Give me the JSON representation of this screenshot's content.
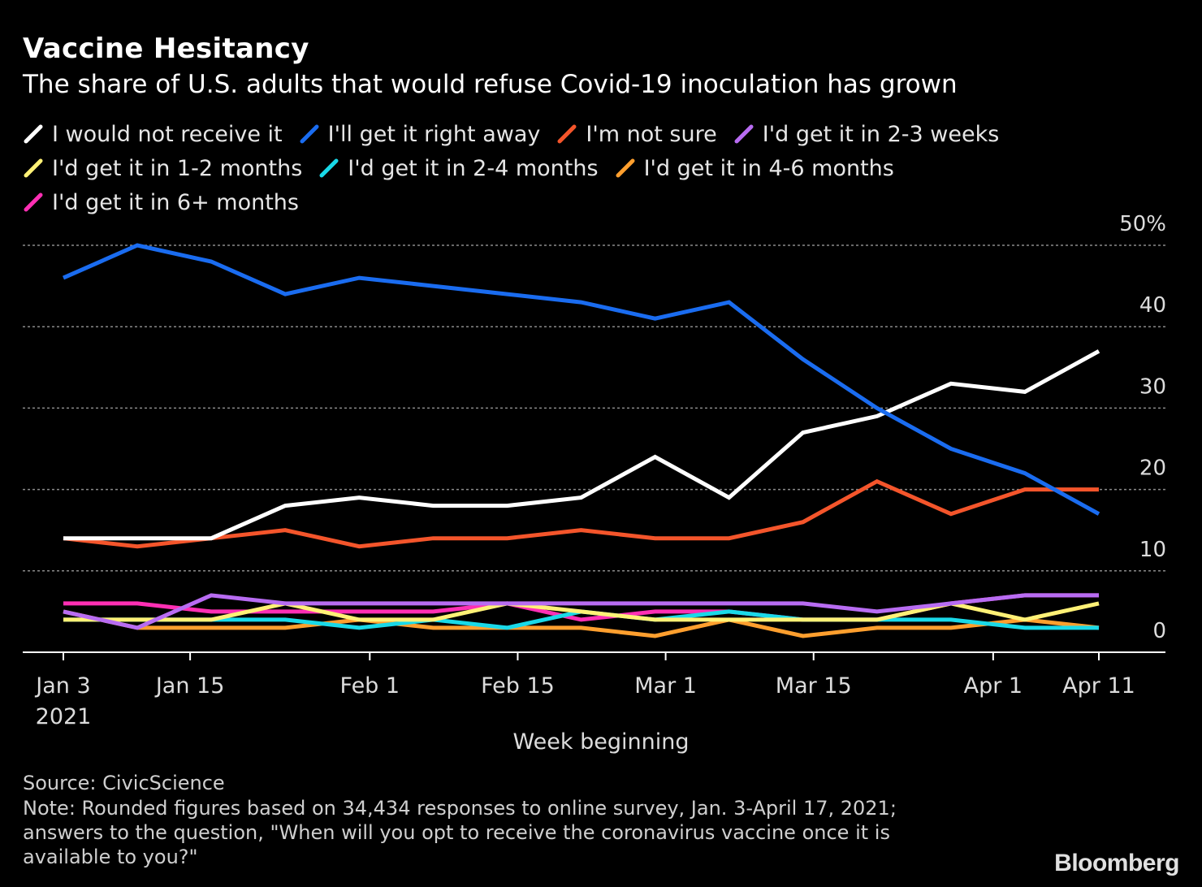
{
  "header": {
    "title": "Vaccine Hesitancy",
    "subtitle": "The share of U.S. adults that would refuse Covid-19 inoculation has grown"
  },
  "footer": {
    "source": "Source: CivicScience",
    "note": "Note: Rounded figures based on 34,434 responses to online survey, Jan. 3-April 17, 2021; answers to the question, \"When will you opt to receive the coronavirus vaccine once it is available to you?\"",
    "brand": "Bloomberg"
  },
  "chart_data": {
    "type": "line",
    "title": "Vaccine Hesitancy",
    "xlabel": "Week beginning",
    "ylabel": "",
    "ylim": [
      0,
      50
    ],
    "y_ticks": [
      0,
      10,
      20,
      30,
      40,
      50
    ],
    "y_tick_labels": [
      "0",
      "10",
      "20",
      "30",
      "40",
      "50%"
    ],
    "x_ticks": [
      {
        "week": 0,
        "label": "Jan 3",
        "sublabel": "2021"
      },
      {
        "week": 1.714,
        "label": "Jan 15",
        "sublabel": ""
      },
      {
        "week": 4.143,
        "label": "Feb 1",
        "sublabel": ""
      },
      {
        "week": 6.143,
        "label": "Feb 15",
        "sublabel": ""
      },
      {
        "week": 8.143,
        "label": "Mar 1",
        "sublabel": ""
      },
      {
        "week": 10.143,
        "label": "Mar 15",
        "sublabel": ""
      },
      {
        "week": 12.571,
        "label": "Apr 1",
        "sublabel": ""
      },
      {
        "week": 14,
        "label": "Apr 11",
        "sublabel": ""
      }
    ],
    "grid": true,
    "legend_position": "top",
    "x": [
      0,
      1,
      2,
      3,
      4,
      5,
      6,
      7,
      8,
      9,
      10,
      11,
      12,
      13,
      14
    ],
    "series": [
      {
        "name": "I would not receive it",
        "color": "#ffffff",
        "values": [
          14,
          14,
          14,
          18,
          19,
          18,
          18,
          19,
          24,
          19,
          27,
          29,
          33,
          32,
          37
        ]
      },
      {
        "name": "I'll get it right away",
        "color": "#1a6cf0",
        "values": [
          46,
          50,
          48,
          44,
          46,
          45,
          44,
          43,
          41,
          43,
          36,
          30,
          25,
          22,
          17
        ]
      },
      {
        "name": "I'm not sure",
        "color": "#f4552b",
        "values": [
          14,
          13,
          14,
          15,
          13,
          14,
          14,
          15,
          14,
          14,
          16,
          21,
          17,
          20,
          20
        ]
      },
      {
        "name": "I'd get it in 2-3 weeks",
        "color": "#b86cf2",
        "values": [
          5,
          3,
          7,
          6,
          6,
          6,
          6,
          6,
          6,
          6,
          6,
          5,
          6,
          7,
          7
        ]
      },
      {
        "name": "I'd get it in 1-2 months",
        "color": "#fff176",
        "values": [
          4,
          4,
          4,
          6,
          4,
          4,
          6,
          5,
          4,
          4,
          4,
          4,
          6,
          4,
          6
        ]
      },
      {
        "name": "I'd get it in 2-4 months",
        "color": "#19d9e8",
        "values": [
          4,
          4,
          4,
          4,
          3,
          4,
          3,
          5,
          4,
          5,
          4,
          4,
          4,
          3,
          3
        ]
      },
      {
        "name": "I'd get it in 4-6 months",
        "color": "#ff9f2e",
        "values": [
          5,
          3,
          3,
          3,
          4,
          3,
          3,
          3,
          2,
          4,
          2,
          3,
          3,
          4,
          3
        ]
      },
      {
        "name": "I'd get it in 6+ months",
        "color": "#ff2fb4",
        "values": [
          6,
          6,
          5,
          5,
          5,
          5,
          6,
          4,
          5,
          5,
          4,
          4,
          6,
          7,
          7
        ]
      }
    ]
  }
}
